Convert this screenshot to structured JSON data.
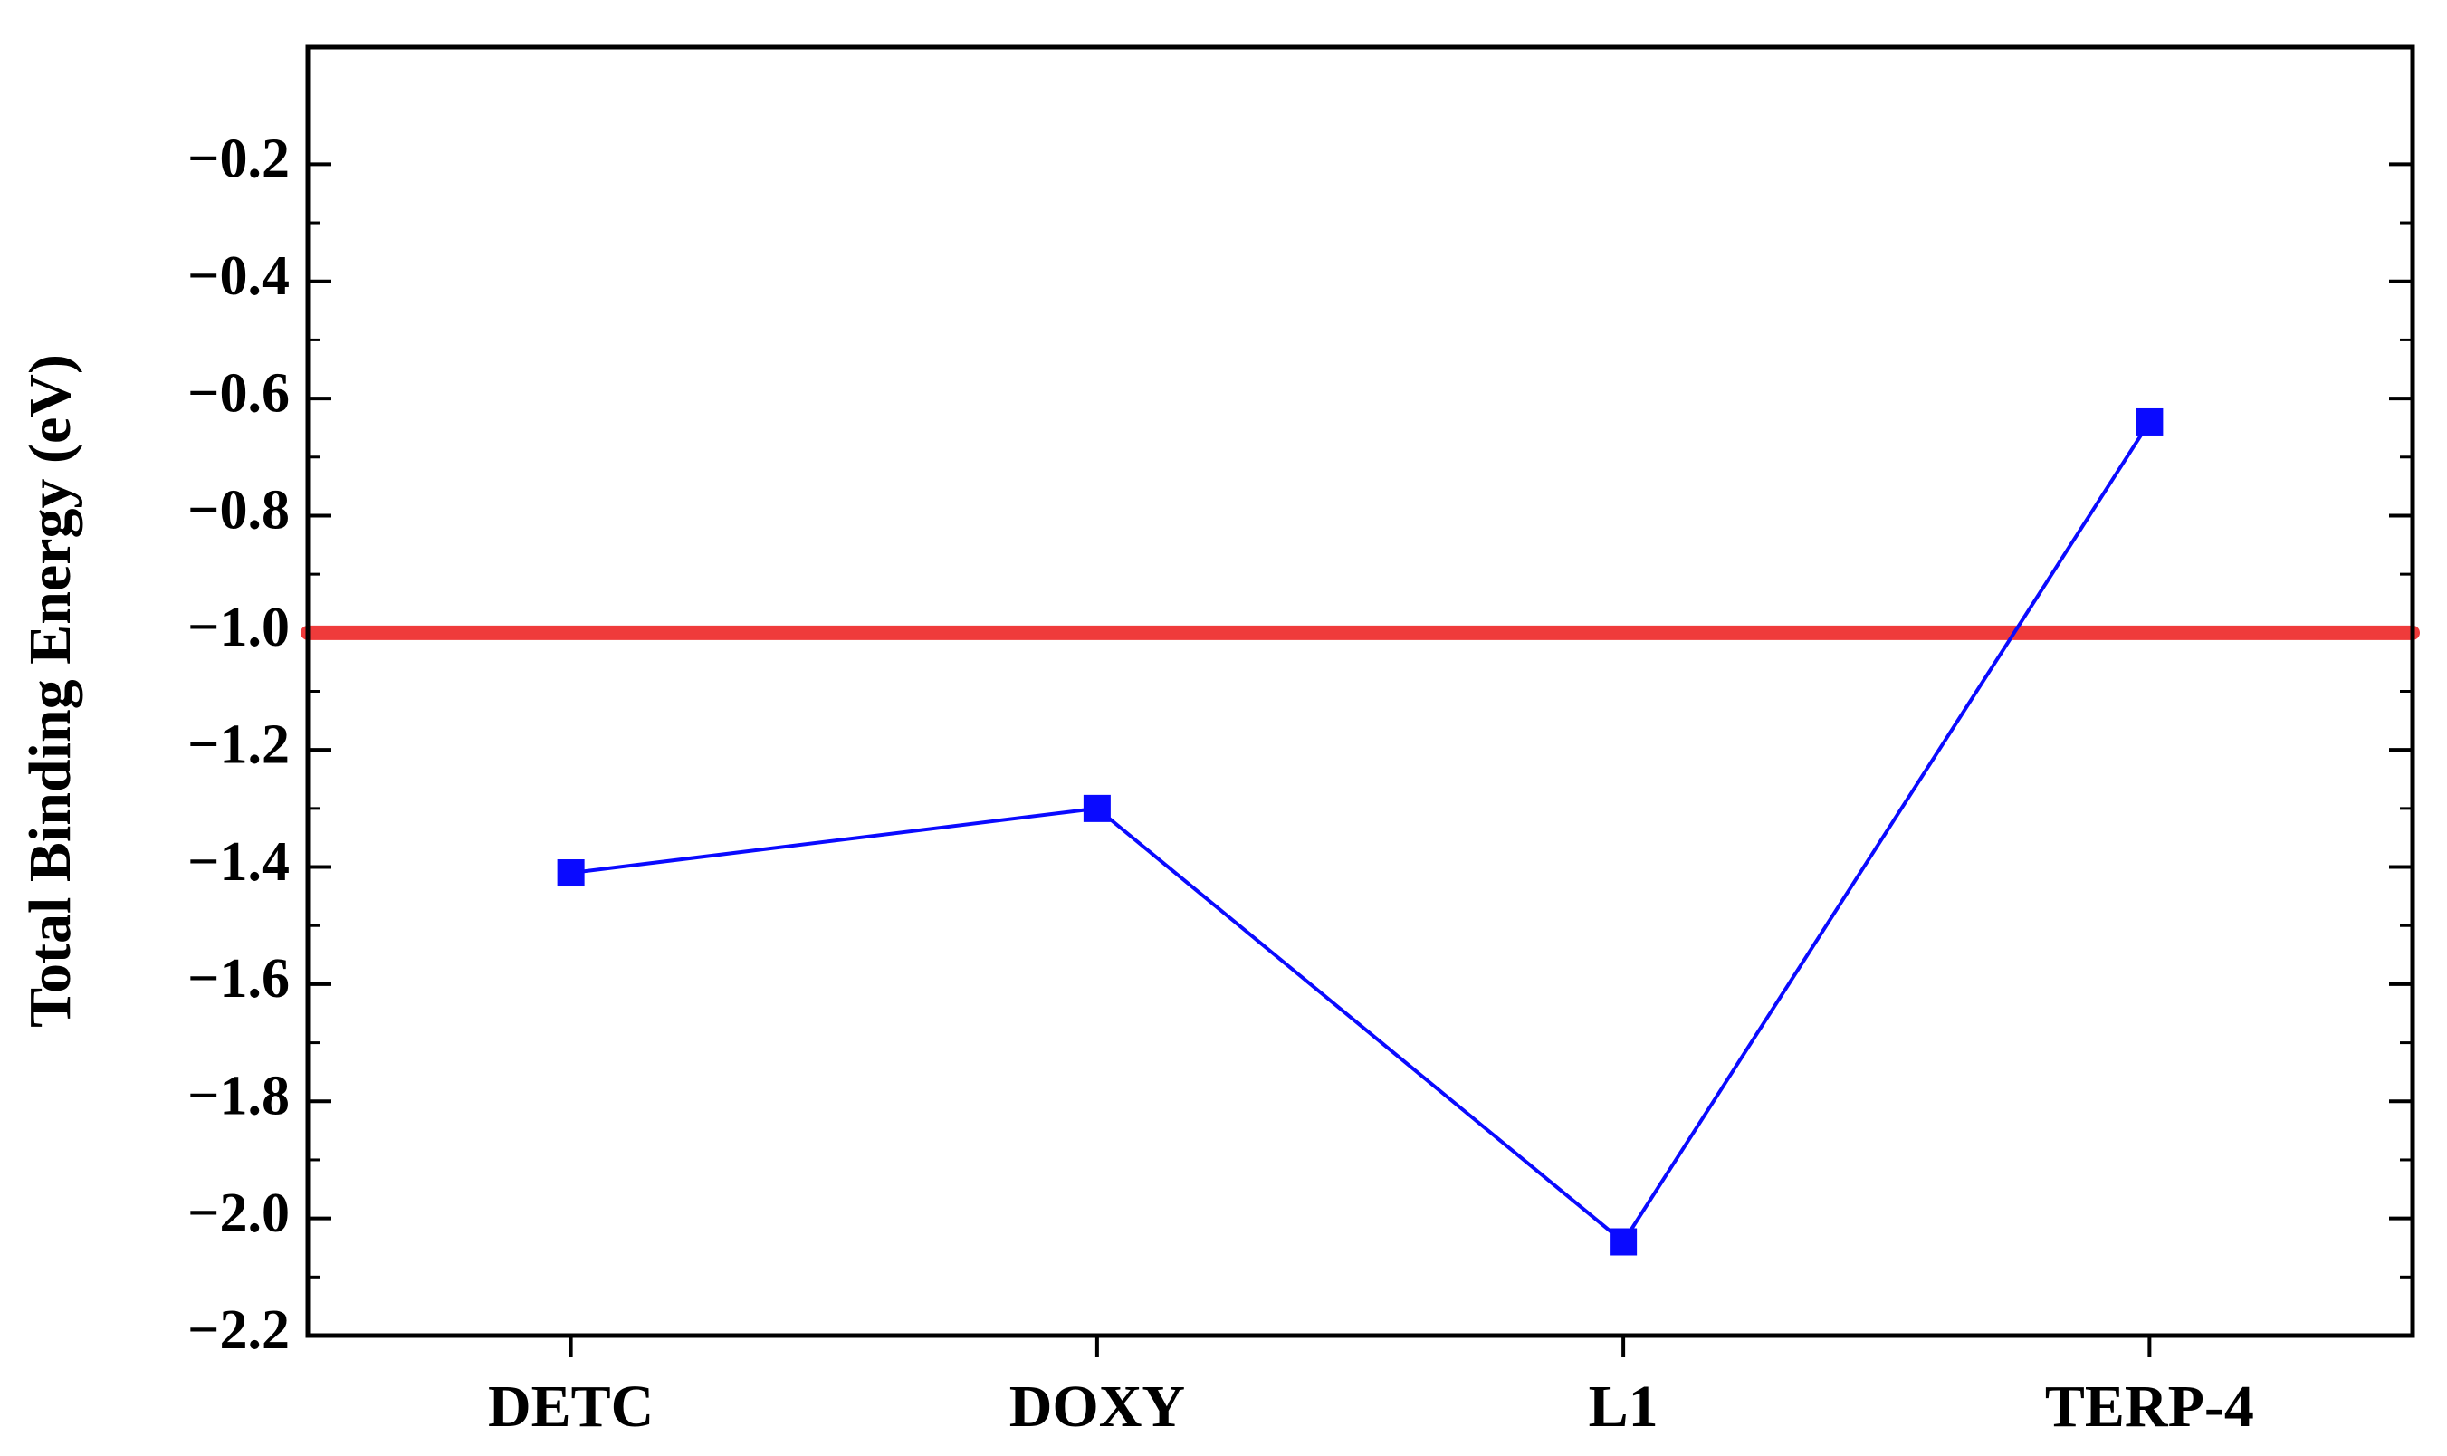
{
  "chart_data": {
    "type": "line",
    "y_label": "Total Binding Energy (eV)",
    "categories": [
      "DETC",
      "DOXY",
      "L1",
      "TERP-4"
    ],
    "series": [
      {
        "name": "Total Binding Energy",
        "color": "#0a0aff",
        "values": [
          -1.41,
          -1.3,
          -2.04,
          -0.64
        ]
      }
    ],
    "reference_line": {
      "value": -1.0,
      "color": "#ef3b3b"
    },
    "ylim": [
      -2.2,
      0
    ],
    "yticks": [
      {
        "value": -2.2,
        "label": "−2.2"
      },
      {
        "value": -2.0,
        "label": "−2.0"
      },
      {
        "value": -1.8,
        "label": "−1.8"
      },
      {
        "value": -1.6,
        "label": "−1.6"
      },
      {
        "value": -1.4,
        "label": "−1.4"
      },
      {
        "value": -1.2,
        "label": "−1.2"
      },
      {
        "value": -1.0,
        "label": "−1.0"
      },
      {
        "value": -0.8,
        "label": "−0.8"
      },
      {
        "value": -0.6,
        "label": "−0.6"
      },
      {
        "value": -0.4,
        "label": "−0.4"
      },
      {
        "value": -0.2,
        "label": "−0.2"
      }
    ],
    "grid": false
  }
}
